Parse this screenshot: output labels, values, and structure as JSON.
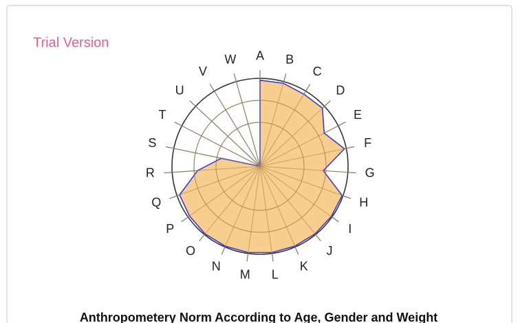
{
  "chart_data": {
    "type": "radar",
    "title": "Anthropometery Norm According to Age, Gender and Weight",
    "annotation": "Trial Version",
    "categories": [
      "A",
      "B",
      "C",
      "D",
      "E",
      "F",
      "G",
      "H",
      "I",
      "J",
      "K",
      "L",
      "M",
      "N",
      "O",
      "P",
      "Q",
      "R",
      "S",
      "T",
      "U",
      "V",
      "W"
    ],
    "values": [
      98,
      98,
      96,
      97,
      82,
      98,
      72,
      99,
      99,
      99,
      99,
      99,
      99,
      99,
      99,
      98,
      97,
      71,
      45,
      0,
      0,
      0,
      0
    ],
    "color": "#f7c57a",
    "line_color": "#3a3ad6",
    "rlim": [
      0,
      100
    ],
    "rticks": [
      50,
      75,
      100
    ],
    "grid": true
  }
}
